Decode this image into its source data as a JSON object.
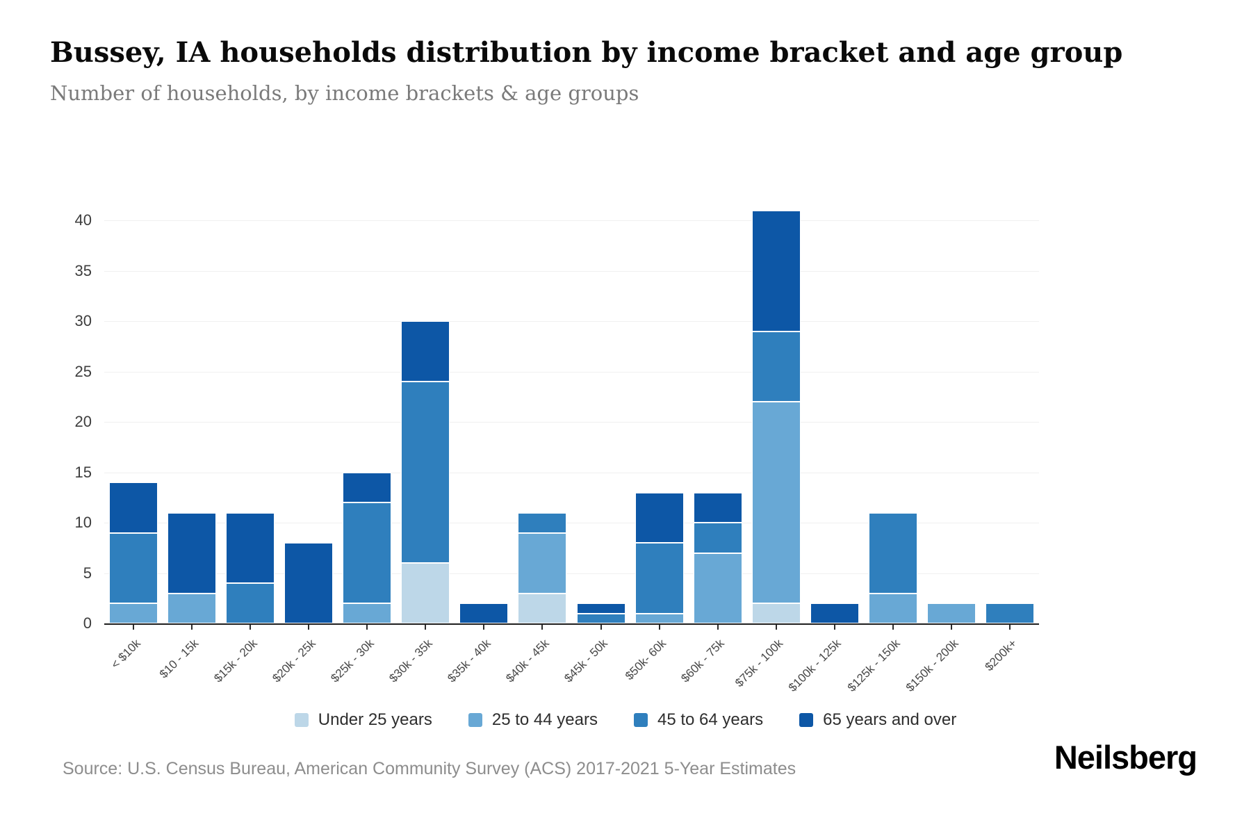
{
  "header": {
    "title": "Bussey, IA households distribution by income bracket and age group",
    "subtitle": "Number of households, by income brackets & age groups"
  },
  "chart_data": {
    "type": "bar",
    "stacked": true,
    "title": "Bussey, IA households distribution by income bracket and age group",
    "subtitle": "Number of households, by income brackets & age groups",
    "xlabel": "",
    "ylabel": "",
    "categories": [
      "< $10k",
      "$10 - 15k",
      "$15k - 20k",
      "$20k - 25k",
      "$25k - 30k",
      "$30k - 35k",
      "$35k - 40k",
      "$40k - 45k",
      "$45k - 50k",
      "$50k- 60k",
      "$60k - 75k",
      "$75k - 100k",
      "$100k - 125k",
      "$125k - 150k",
      "$150k - 200k",
      "$200k+"
    ],
    "series": [
      {
        "name": "Under 25 years",
        "color": "#bdd7e8",
        "values": [
          0,
          0,
          0,
          0,
          0,
          6,
          0,
          3,
          0,
          0,
          0,
          2,
          0,
          0,
          0,
          0
        ]
      },
      {
        "name": "25 to 44 years",
        "color": "#68a8d5",
        "values": [
          2,
          3,
          0,
          0,
          2,
          0,
          0,
          6,
          0,
          1,
          7,
          20,
          0,
          3,
          2,
          0
        ]
      },
      {
        "name": "45 to 64 years",
        "color": "#2f7fbd",
        "values": [
          7,
          0,
          4,
          0,
          10,
          18,
          0,
          2,
          1,
          7,
          3,
          7,
          0,
          8,
          0,
          2
        ]
      },
      {
        "name": "65 years and over",
        "color": "#0d57a6",
        "values": [
          5,
          8,
          7,
          8,
          3,
          6,
          2,
          0,
          1,
          5,
          3,
          12,
          2,
          0,
          0,
          0
        ]
      }
    ],
    "totals": [
      14,
      11,
      11,
      8,
      15,
      30,
      2,
      11,
      2,
      13,
      13,
      41,
      2,
      11,
      2,
      2
    ],
    "yticks": [
      0,
      5,
      10,
      15,
      20,
      25,
      30,
      35,
      40
    ],
    "ylim": [
      0,
      41.4
    ],
    "grid": true,
    "legend_position": "bottom"
  },
  "footer": {
    "source": "Source: U.S. Census Bureau, American Community Survey (ACS) 2017-2021 5-Year Estimates",
    "brand": "Neilsberg"
  }
}
